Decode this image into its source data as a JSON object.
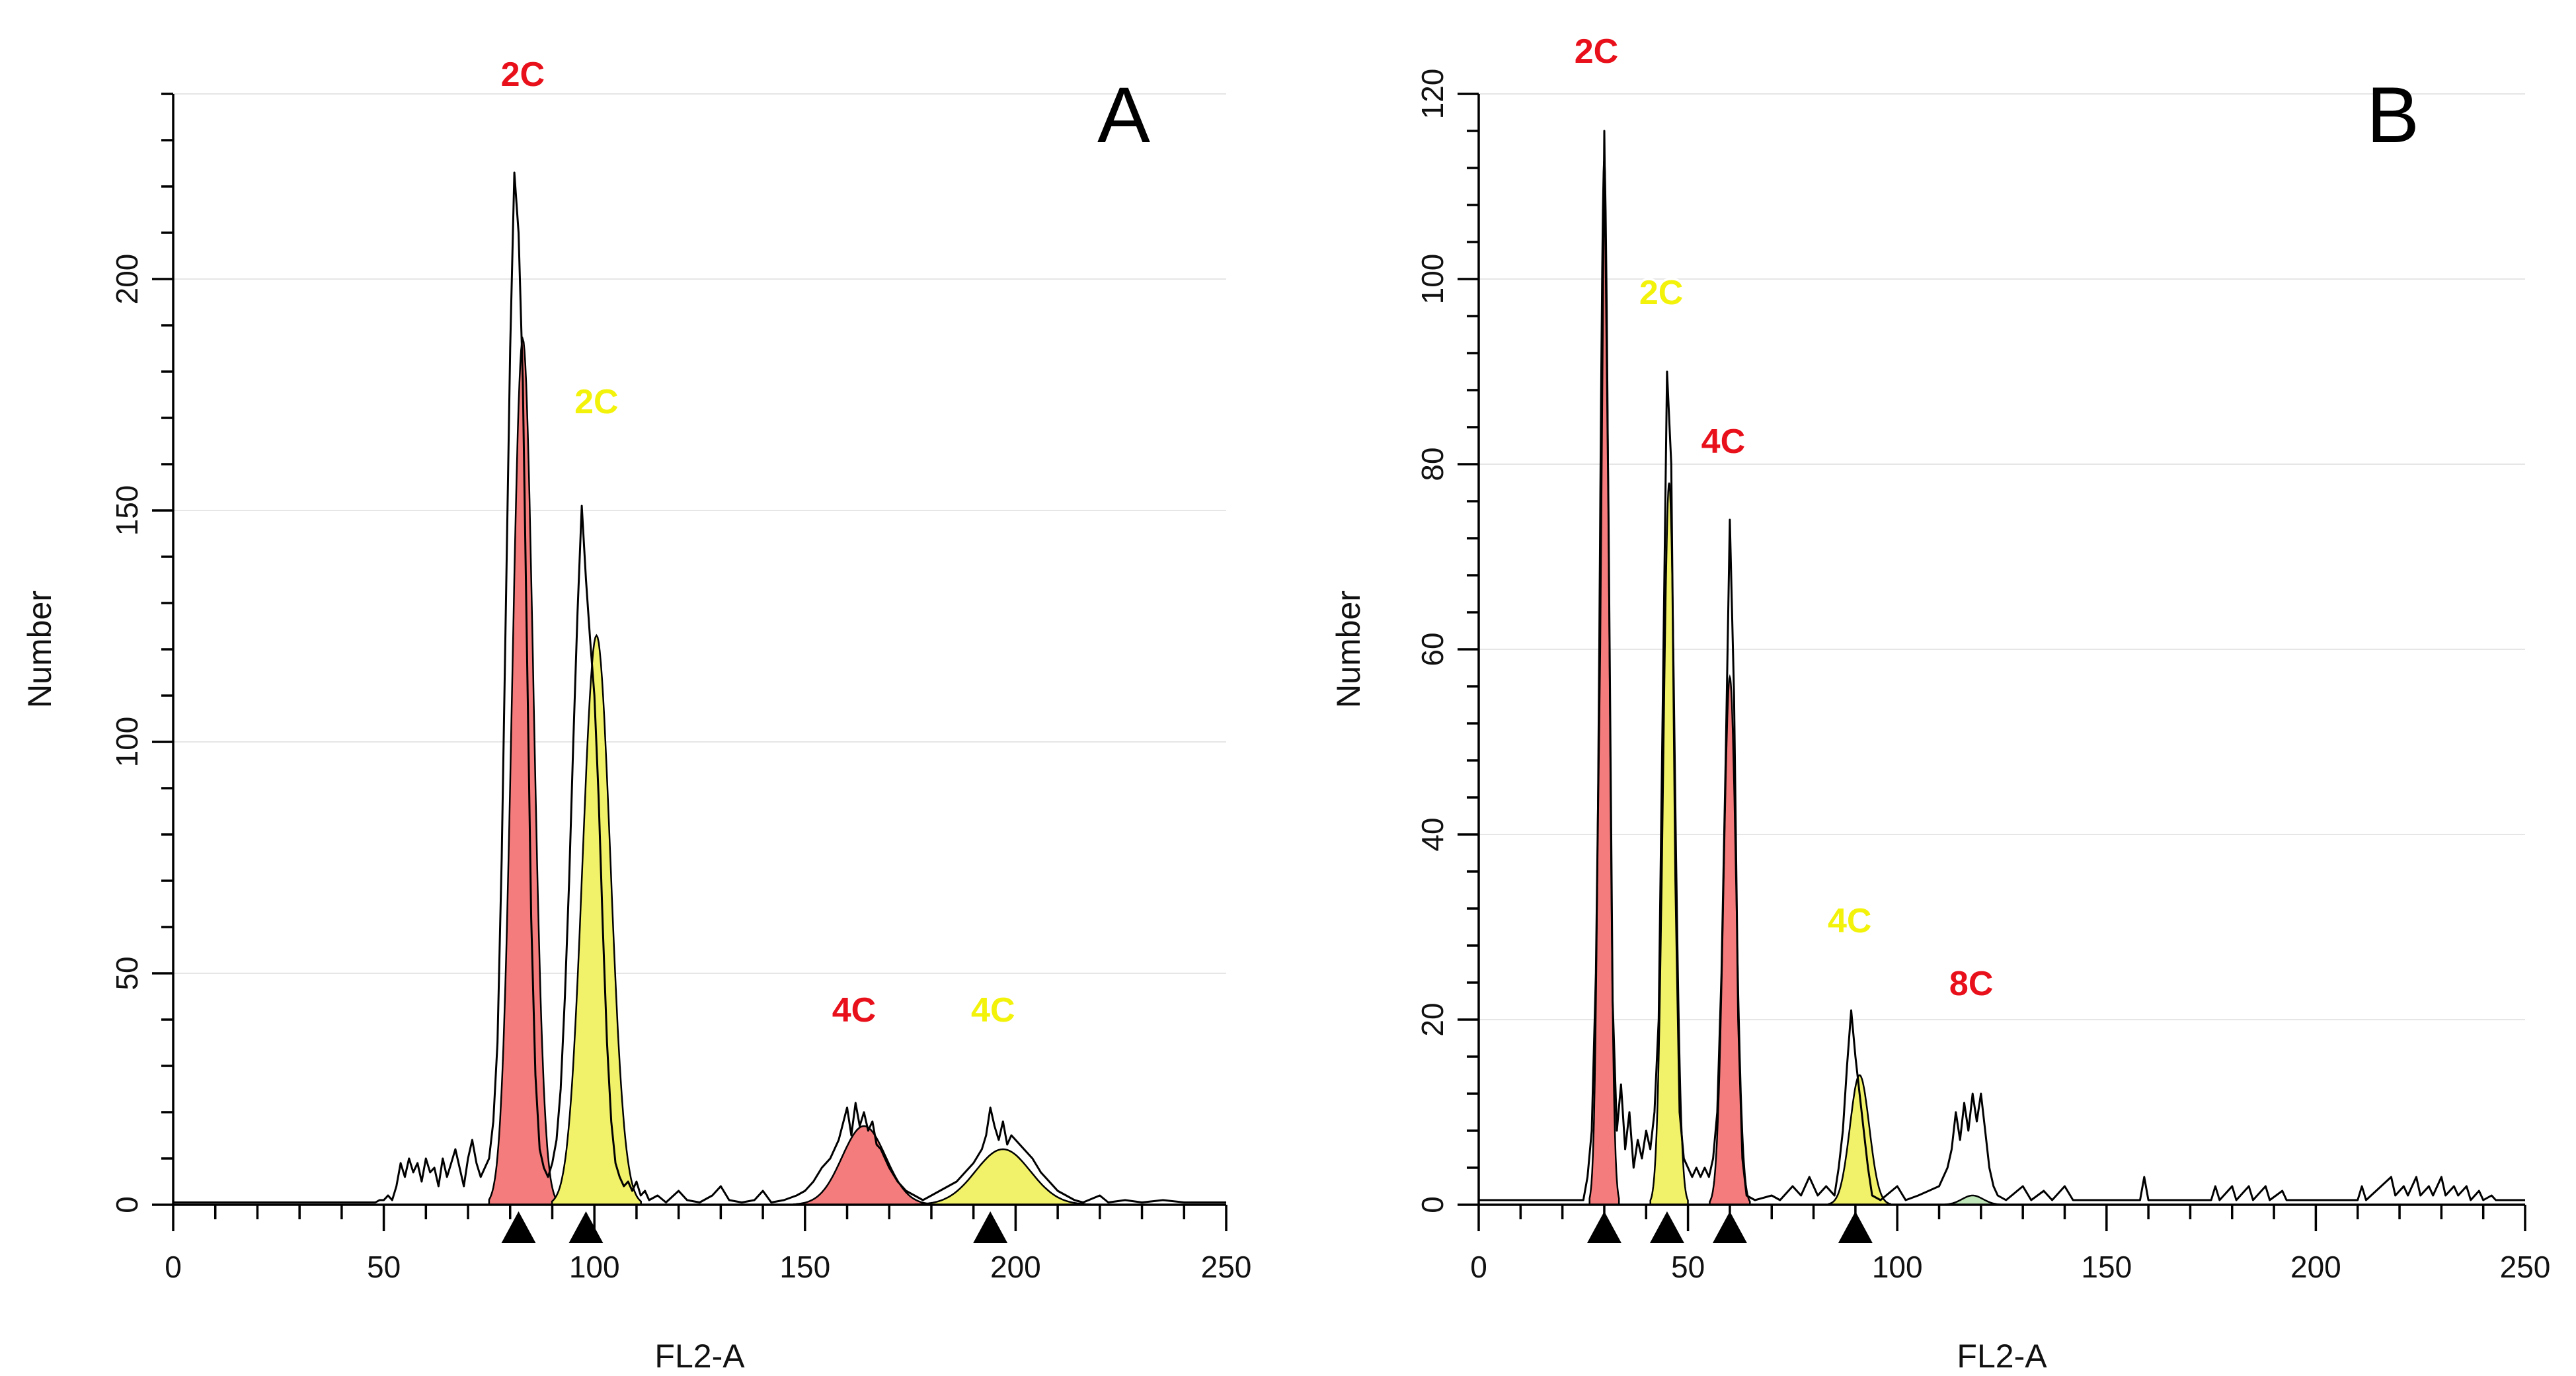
{
  "chart_data": [
    {
      "type": "area",
      "panel": "A",
      "xlabel": "FL2-A",
      "ylabel": "Number",
      "xlim": [
        0,
        250
      ],
      "ylim": [
        0,
        240
      ],
      "xticks": [
        0,
        50,
        100,
        150,
        200,
        250
      ],
      "yticks": [
        0,
        50,
        100,
        150,
        200
      ],
      "colors": {
        "red": "#f47c7c",
        "yellow": "#f2f26a"
      },
      "peaks": [
        {
          "label": "2C",
          "color": "red",
          "mean": 83,
          "height": 187,
          "sd": 2.5
        },
        {
          "label": "2C",
          "color": "yellow",
          "mean": 100.5,
          "height": 123,
          "sd": 3.3
        },
        {
          "label": "4C",
          "color": "red",
          "mean": 164,
          "height": 17,
          "sd": 5.2
        },
        {
          "label": "4C",
          "color": "yellow",
          "mean": 197,
          "height": 12,
          "sd": 6.5
        }
      ],
      "markers": [
        82,
        98,
        194
      ],
      "histogram": [
        [
          0,
          0.5
        ],
        [
          48,
          0.5
        ],
        [
          49,
          1
        ],
        [
          50,
          1
        ],
        [
          51,
          2
        ],
        [
          52,
          1
        ],
        [
          53,
          4
        ],
        [
          54,
          9
        ],
        [
          55,
          6
        ],
        [
          56,
          10
        ],
        [
          57,
          7
        ],
        [
          58,
          9
        ],
        [
          59,
          5
        ],
        [
          60,
          10
        ],
        [
          61,
          7
        ],
        [
          62,
          8
        ],
        [
          63,
          4
        ],
        [
          64,
          10
        ],
        [
          65,
          6
        ],
        [
          66,
          9
        ],
        [
          67,
          12
        ],
        [
          68,
          8
        ],
        [
          69,
          4
        ],
        [
          70,
          10
        ],
        [
          71,
          14
        ],
        [
          72,
          9
        ],
        [
          73,
          6
        ],
        [
          74,
          8
        ],
        [
          75,
          10
        ],
        [
          76,
          18
        ],
        [
          77,
          35
        ],
        [
          78,
          75
        ],
        [
          79,
          130
        ],
        [
          80,
          185
        ],
        [
          81,
          223
        ],
        [
          82,
          210
        ],
        [
          83,
          178
        ],
        [
          84,
          120
        ],
        [
          85,
          62
        ],
        [
          86,
          28
        ],
        [
          87,
          12
        ],
        [
          88,
          8
        ],
        [
          89,
          6
        ],
        [
          90,
          9
        ],
        [
          91,
          14
        ],
        [
          92,
          25
        ],
        [
          93,
          45
        ],
        [
          94,
          70
        ],
        [
          95,
          100
        ],
        [
          96,
          128
        ],
        [
          97,
          151
        ],
        [
          98,
          135
        ],
        [
          99,
          122
        ],
        [
          100,
          110
        ],
        [
          101,
          88
        ],
        [
          102,
          60
        ],
        [
          103,
          35
        ],
        [
          104,
          18
        ],
        [
          105,
          9
        ],
        [
          106,
          6
        ],
        [
          107,
          4
        ],
        [
          108,
          5
        ],
        [
          109,
          3
        ],
        [
          110,
          5
        ],
        [
          111,
          2
        ],
        [
          112,
          3
        ],
        [
          113,
          1
        ],
        [
          115,
          2
        ],
        [
          117,
          0.5
        ],
        [
          120,
          3
        ],
        [
          122,
          1
        ],
        [
          125,
          0.5
        ],
        [
          128,
          2
        ],
        [
          130,
          4
        ],
        [
          132,
          1
        ],
        [
          135,
          0.5
        ],
        [
          138,
          1
        ],
        [
          140,
          3
        ],
        [
          142,
          0.5
        ],
        [
          145,
          1
        ],
        [
          148,
          2
        ],
        [
          150,
          3
        ],
        [
          152,
          5
        ],
        [
          154,
          8
        ],
        [
          156,
          10
        ],
        [
          158,
          14
        ],
        [
          160,
          21
        ],
        [
          161,
          15
        ],
        [
          162,
          22
        ],
        [
          163,
          17
        ],
        [
          164,
          20
        ],
        [
          165,
          16
        ],
        [
          166,
          18
        ],
        [
          167,
          13
        ],
        [
          168,
          12
        ],
        [
          170,
          8
        ],
        [
          172,
          5
        ],
        [
          174,
          3
        ],
        [
          176,
          2
        ],
        [
          178,
          1
        ],
        [
          180,
          2
        ],
        [
          182,
          3
        ],
        [
          184,
          4
        ],
        [
          186,
          5
        ],
        [
          188,
          7
        ],
        [
          190,
          9
        ],
        [
          192,
          12
        ],
        [
          193,
          15
        ],
        [
          194,
          21
        ],
        [
          195,
          17
        ],
        [
          196,
          14
        ],
        [
          197,
          18
        ],
        [
          198,
          13
        ],
        [
          199,
          15
        ],
        [
          200,
          14
        ],
        [
          202,
          12
        ],
        [
          204,
          10
        ],
        [
          206,
          7
        ],
        [
          208,
          5
        ],
        [
          210,
          3
        ],
        [
          212,
          2
        ],
        [
          214,
          1
        ],
        [
          216,
          0.5
        ],
        [
          220,
          2
        ],
        [
          222,
          0.5
        ],
        [
          226,
          1
        ],
        [
          230,
          0.5
        ],
        [
          235,
          1
        ],
        [
          240,
          0.5
        ],
        [
          250,
          0.5
        ]
      ]
    },
    {
      "type": "area",
      "panel": "B",
      "xlabel": "FL2-A",
      "ylabel": "Number",
      "xlim": [
        0,
        250
      ],
      "ylim": [
        0,
        120
      ],
      "xticks": [
        0,
        50,
        100,
        150,
        200,
        250
      ],
      "yticks": [
        0,
        20,
        40,
        60,
        80,
        100,
        120
      ],
      "colors": {
        "red": "#f47c7c",
        "yellow": "#f2f26a",
        "green": "#bfe6b8"
      },
      "peaks": [
        {
          "label": "2C",
          "color": "red",
          "mean": 30,
          "height": 113,
          "sd": 1.1
        },
        {
          "label": "2C",
          "color": "yellow",
          "mean": 45.5,
          "height": 78,
          "sd": 1.4
        },
        {
          "label": "4C",
          "color": "red",
          "mean": 60,
          "height": 57,
          "sd": 1.5
        },
        {
          "label": "4C",
          "color": "yellow",
          "mean": 91,
          "height": 14,
          "sd": 2.3
        },
        {
          "label": "8C",
          "color": "green",
          "mean": 118,
          "height": 1,
          "sd": 2.5
        }
      ],
      "markers": [
        30,
        45,
        60,
        90
      ],
      "histogram": [
        [
          0,
          0.5
        ],
        [
          25,
          0.5
        ],
        [
          26,
          3
        ],
        [
          27,
          8
        ],
        [
          28,
          25
        ],
        [
          29,
          60
        ],
        [
          30,
          116
        ],
        [
          31,
          75
        ],
        [
          32,
          22
        ],
        [
          33,
          8
        ],
        [
          34,
          13
        ],
        [
          35,
          6
        ],
        [
          36,
          10
        ],
        [
          37,
          4
        ],
        [
          38,
          7
        ],
        [
          39,
          5
        ],
        [
          40,
          8
        ],
        [
          41,
          6
        ],
        [
          42,
          10
        ],
        [
          43,
          20
        ],
        [
          44,
          55
        ],
        [
          45,
          90
        ],
        [
          46,
          80
        ],
        [
          47,
          35
        ],
        [
          48,
          10
        ],
        [
          49,
          5
        ],
        [
          50,
          4
        ],
        [
          51,
          3
        ],
        [
          52,
          4
        ],
        [
          53,
          3
        ],
        [
          54,
          4
        ],
        [
          55,
          3
        ],
        [
          56,
          5
        ],
        [
          57,
          10
        ],
        [
          58,
          25
        ],
        [
          59,
          48
        ],
        [
          60,
          74
        ],
        [
          61,
          55
        ],
        [
          62,
          20
        ],
        [
          63,
          5
        ],
        [
          64,
          1
        ],
        [
          66,
          0.5
        ],
        [
          70,
          1
        ],
        [
          72,
          0.5
        ],
        [
          75,
          2
        ],
        [
          77,
          1
        ],
        [
          79,
          3
        ],
        [
          81,
          1
        ],
        [
          83,
          2
        ],
        [
          85,
          1
        ],
        [
          86,
          4
        ],
        [
          87,
          8
        ],
        [
          88,
          15
        ],
        [
          89,
          21
        ],
        [
          90,
          16
        ],
        [
          91,
          12
        ],
        [
          92,
          8
        ],
        [
          93,
          4
        ],
        [
          94,
          1
        ],
        [
          96,
          0.5
        ],
        [
          100,
          2
        ],
        [
          102,
          0.5
        ],
        [
          105,
          1
        ],
        [
          110,
          2
        ],
        [
          112,
          4
        ],
        [
          113,
          6
        ],
        [
          114,
          10
        ],
        [
          115,
          7
        ],
        [
          116,
          11
        ],
        [
          117,
          8
        ],
        [
          118,
          12
        ],
        [
          119,
          9
        ],
        [
          120,
          12
        ],
        [
          121,
          8
        ],
        [
          122,
          4
        ],
        [
          123,
          2
        ],
        [
          124,
          1
        ],
        [
          126,
          0.5
        ],
        [
          130,
          2
        ],
        [
          132,
          0.5
        ],
        [
          135,
          1.5
        ],
        [
          137,
          0.5
        ],
        [
          140,
          2
        ],
        [
          142,
          0.5
        ],
        [
          158,
          0.5
        ],
        [
          159,
          3
        ],
        [
          160,
          0.5
        ],
        [
          175,
          0.5
        ],
        [
          176,
          2
        ],
        [
          177,
          0.5
        ],
        [
          180,
          2
        ],
        [
          181,
          0.5
        ],
        [
          184,
          2
        ],
        [
          185,
          0.5
        ],
        [
          188,
          2
        ],
        [
          189,
          0.5
        ],
        [
          192,
          1.5
        ],
        [
          193,
          0.5
        ],
        [
          210,
          0.5
        ],
        [
          211,
          2
        ],
        [
          212,
          0.5
        ],
        [
          218,
          3
        ],
        [
          219,
          1
        ],
        [
          221,
          2
        ],
        [
          222,
          1
        ],
        [
          224,
          3
        ],
        [
          225,
          1
        ],
        [
          227,
          2
        ],
        [
          228,
          1
        ],
        [
          230,
          3
        ],
        [
          231,
          1
        ],
        [
          233,
          2
        ],
        [
          234,
          1
        ],
        [
          236,
          2
        ],
        [
          237,
          0.5
        ],
        [
          239,
          1.5
        ],
        [
          240,
          0.5
        ],
        [
          242,
          1
        ],
        [
          243,
          0.5
        ],
        [
          250,
          0.5
        ]
      ]
    }
  ]
}
